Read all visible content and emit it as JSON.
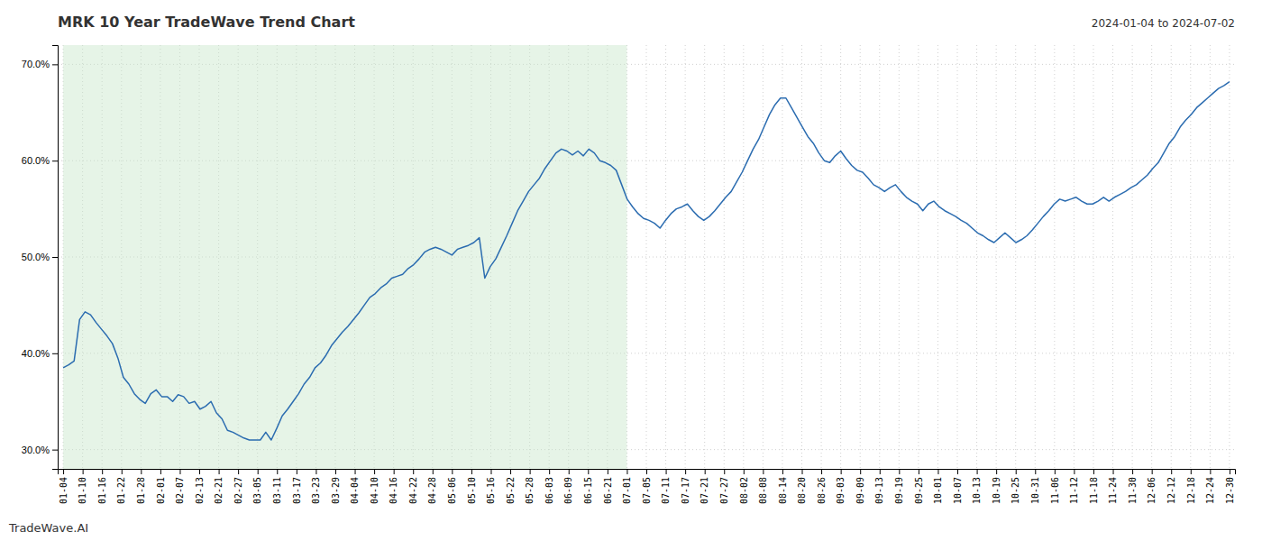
{
  "chart_data": {
    "type": "line",
    "title": "MRK 10 Year TradeWave Trend Chart",
    "subtitle": "2024-01-04 to 2024-07-02",
    "annotations": [
      "TradeWave.AI"
    ],
    "color": "#2b6cb0",
    "grid": true,
    "shade": {
      "x": [
        0,
        102.95
      ],
      "color": "#c8e6c9"
    },
    "xlim": [
      -1,
      214
    ],
    "xticks": [
      {
        "value": 0,
        "label": "01-04"
      },
      {
        "value": 3.55,
        "label": "01-10"
      },
      {
        "value": 7.1,
        "label": "01-16"
      },
      {
        "value": 10.65,
        "label": "01-22"
      },
      {
        "value": 14.2,
        "label": "01-28"
      },
      {
        "value": 17.75,
        "label": "02-01"
      },
      {
        "value": 21.3,
        "label": "02-07"
      },
      {
        "value": 24.85,
        "label": "02-13"
      },
      {
        "value": 28.4,
        "label": "02-21"
      },
      {
        "value": 31.95,
        "label": "02-27"
      },
      {
        "value": 35.5,
        "label": "03-05"
      },
      {
        "value": 39.05,
        "label": "03-11"
      },
      {
        "value": 42.6,
        "label": "03-17"
      },
      {
        "value": 46.15,
        "label": "03-23"
      },
      {
        "value": 49.7,
        "label": "03-29"
      },
      {
        "value": 53.25,
        "label": "04-04"
      },
      {
        "value": 56.8,
        "label": "04-10"
      },
      {
        "value": 60.35,
        "label": "04-16"
      },
      {
        "value": 63.9,
        "label": "04-22"
      },
      {
        "value": 67.45,
        "label": "04-28"
      },
      {
        "value": 71,
        "label": "05-06"
      },
      {
        "value": 74.55,
        "label": "05-10"
      },
      {
        "value": 78.1,
        "label": "05-16"
      },
      {
        "value": 81.65,
        "label": "05-22"
      },
      {
        "value": 85.2,
        "label": "05-28"
      },
      {
        "value": 88.75,
        "label": "06-03"
      },
      {
        "value": 92.3,
        "label": "06-09"
      },
      {
        "value": 95.85,
        "label": "06-15"
      },
      {
        "value": 99.4,
        "label": "06-21"
      },
      {
        "value": 102.95,
        "label": "07-01"
      },
      {
        "value": 106.5,
        "label": "07-05"
      },
      {
        "value": 110.05,
        "label": "07-11"
      },
      {
        "value": 113.6,
        "label": "07-17"
      },
      {
        "value": 117.15,
        "label": "07-21"
      },
      {
        "value": 120.7,
        "label": "07-27"
      },
      {
        "value": 124.25,
        "label": "08-02"
      },
      {
        "value": 127.8,
        "label": "08-08"
      },
      {
        "value": 131.35,
        "label": "08-14"
      },
      {
        "value": 134.9,
        "label": "08-20"
      },
      {
        "value": 138.45,
        "label": "08-26"
      },
      {
        "value": 142,
        "label": "09-03"
      },
      {
        "value": 145.55,
        "label": "09-09"
      },
      {
        "value": 149.1,
        "label": "09-13"
      },
      {
        "value": 152.65,
        "label": "09-19"
      },
      {
        "value": 156.2,
        "label": "09-25"
      },
      {
        "value": 159.75,
        "label": "10-01"
      },
      {
        "value": 163.3,
        "label": "10-07"
      },
      {
        "value": 166.85,
        "label": "10-13"
      },
      {
        "value": 170.4,
        "label": "10-19"
      },
      {
        "value": 173.95,
        "label": "10-25"
      },
      {
        "value": 177.5,
        "label": "10-31"
      },
      {
        "value": 181.05,
        "label": "11-06"
      },
      {
        "value": 184.6,
        "label": "11-12"
      },
      {
        "value": 188.15,
        "label": "11-18"
      },
      {
        "value": 191.7,
        "label": "11-24"
      },
      {
        "value": 195.25,
        "label": "11-30"
      },
      {
        "value": 198.8,
        "label": "12-06"
      },
      {
        "value": 202.35,
        "label": "12-12"
      },
      {
        "value": 205.9,
        "label": "12-18"
      },
      {
        "value": 209.45,
        "label": "12-24"
      },
      {
        "value": 213,
        "label": "12-30"
      }
    ],
    "ylim": [
      0.28,
      0.72
    ],
    "yticks": [
      {
        "value": 0.3,
        "label": "30.0%"
      },
      {
        "value": 0.4,
        "label": "40.0%"
      },
      {
        "value": 0.5,
        "label": "50.0%"
      },
      {
        "value": 0.6,
        "label": "60.0%"
      },
      {
        "value": 0.7,
        "label": "70.0%"
      }
    ],
    "x": [
      0,
      1,
      2,
      3,
      4,
      5,
      6,
      7,
      8,
      9,
      10,
      11,
      12,
      13,
      14,
      15,
      16,
      17,
      18,
      19,
      20,
      21,
      22,
      23,
      24,
      25,
      26,
      27,
      28,
      29,
      30,
      31,
      32,
      33,
      34,
      35,
      36,
      37,
      38,
      39,
      40,
      41,
      42,
      43,
      44,
      45,
      46,
      47,
      48,
      49,
      50,
      51,
      52,
      53,
      54,
      55,
      56,
      57,
      58,
      59,
      60,
      61,
      62,
      63,
      64,
      65,
      66,
      67,
      68,
      69,
      70,
      71,
      72,
      73,
      74,
      75,
      76,
      77,
      78,
      79,
      80,
      81,
      82,
      83,
      84,
      85,
      86,
      87,
      88,
      89,
      90,
      91,
      92,
      93,
      94,
      95,
      96,
      97,
      98,
      99,
      100,
      101,
      102,
      103,
      104,
      105,
      106,
      107,
      108,
      109,
      110,
      111,
      112,
      113,
      114,
      115,
      116,
      117,
      118,
      119,
      120,
      121,
      122,
      123,
      124,
      125,
      126,
      127,
      128,
      129,
      130,
      131,
      132,
      133,
      134,
      135,
      136,
      137,
      138,
      139,
      140,
      141,
      142,
      143,
      144,
      145,
      146,
      147,
      148,
      149,
      150,
      151,
      152,
      153,
      154,
      155,
      156,
      157,
      158,
      159,
      160,
      161,
      162,
      163,
      164,
      165,
      166,
      167,
      168,
      169,
      170,
      171,
      172,
      173,
      174,
      175,
      176,
      177,
      178,
      179,
      180,
      181,
      182,
      183,
      184,
      185,
      186,
      187,
      188,
      189,
      190,
      191,
      192,
      193,
      194,
      195,
      196,
      197,
      198,
      199,
      200,
      201,
      202,
      203,
      204,
      205,
      206,
      207,
      208,
      209,
      210,
      211,
      212,
      213
    ],
    "values": [
      0.385,
      0.388,
      0.392,
      0.435,
      0.443,
      0.44,
      0.432,
      0.425,
      0.418,
      0.41,
      0.395,
      0.375,
      0.368,
      0.358,
      0.352,
      0.348,
      0.358,
      0.362,
      0.355,
      0.355,
      0.35,
      0.357,
      0.355,
      0.348,
      0.35,
      0.342,
      0.345,
      0.35,
      0.338,
      0.332,
      0.32,
      0.318,
      0.315,
      0.312,
      0.31,
      0.31,
      0.31,
      0.318,
      0.31,
      0.322,
      0.335,
      0.342,
      0.35,
      0.358,
      0.368,
      0.375,
      0.385,
      0.39,
      0.398,
      0.408,
      0.415,
      0.422,
      0.428,
      0.435,
      0.442,
      0.45,
      0.458,
      0.462,
      0.468,
      0.472,
      0.478,
      0.48,
      0.482,
      0.488,
      0.492,
      0.498,
      0.505,
      0.508,
      0.51,
      0.508,
      0.505,
      0.502,
      0.508,
      0.51,
      0.512,
      0.515,
      0.52,
      0.478,
      0.49,
      0.498,
      0.51,
      0.522,
      0.535,
      0.548,
      0.558,
      0.568,
      0.575,
      0.582,
      0.592,
      0.6,
      0.608,
      0.612,
      0.61,
      0.606,
      0.61,
      0.605,
      0.612,
      0.608,
      0.6,
      0.598,
      0.595,
      0.59,
      0.575,
      0.56,
      0.552,
      0.545,
      0.54,
      0.538,
      0.535,
      0.53,
      0.538,
      0.545,
      0.55,
      0.552,
      0.555,
      0.548,
      0.542,
      0.538,
      0.542,
      0.548,
      0.555,
      0.562,
      0.568,
      0.578,
      0.588,
      0.6,
      0.612,
      0.622,
      0.635,
      0.648,
      0.658,
      0.665,
      0.665,
      0.655,
      0.645,
      0.635,
      0.625,
      0.618,
      0.608,
      0.6,
      0.598,
      0.605,
      0.61,
      0.602,
      0.595,
      0.59,
      0.588,
      0.582,
      0.575,
      0.572,
      0.568,
      0.572,
      0.575,
      0.568,
      0.562,
      0.558,
      0.555,
      0.548,
      0.555,
      0.558,
      0.552,
      0.548,
      0.545,
      0.542,
      0.538,
      0.535,
      0.53,
      0.525,
      0.522,
      0.518,
      0.515,
      0.52,
      0.525,
      0.52,
      0.515,
      0.518,
      0.522,
      0.528,
      0.535,
      0.542,
      0.548,
      0.555,
      0.56,
      0.558,
      0.56,
      0.562,
      0.558,
      0.555,
      0.555,
      0.558,
      0.562,
      0.558,
      0.562,
      0.565,
      0.568,
      0.572,
      0.575,
      0.58,
      0.585,
      0.592,
      0.598,
      0.608,
      0.618,
      0.625,
      0.635,
      0.642,
      0.648,
      0.655,
      0.66,
      0.665,
      0.67,
      0.675,
      0.678,
      0.682
    ]
  }
}
